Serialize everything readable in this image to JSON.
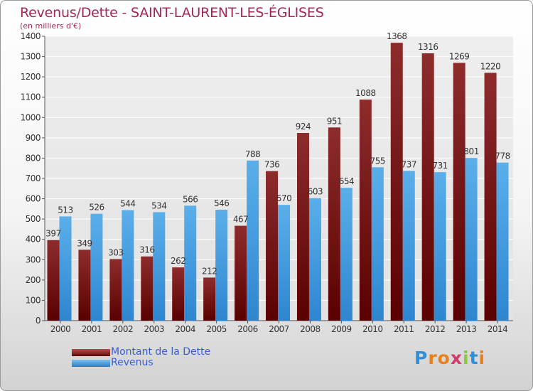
{
  "header": {
    "title": "Revenus/Dette - SAINT-LAURENT-LES-ÉGLISES",
    "subtitle": "(en milliers d'€)"
  },
  "chart_data": {
    "type": "bar",
    "categories": [
      "2000",
      "2001",
      "2002",
      "2003",
      "2004",
      "2005",
      "2006",
      "2007",
      "2008",
      "2009",
      "2010",
      "2011",
      "2012",
      "2013",
      "2014"
    ],
    "series": [
      {
        "name": "Montant de la Dette",
        "color": "#8b1a1a",
        "values": [
          397,
          349,
          303,
          316,
          262,
          212,
          467,
          736,
          924,
          951,
          1088,
          1368,
          1316,
          1269,
          1220
        ]
      },
      {
        "name": "Revenus",
        "color": "#4aa3e3",
        "values": [
          513,
          526,
          544,
          534,
          566,
          546,
          788,
          570,
          603,
          654,
          755,
          737,
          731,
          801,
          778
        ]
      }
    ],
    "ylim": [
      0,
      1400
    ],
    "yticks": [
      0,
      100,
      200,
      300,
      400,
      500,
      600,
      700,
      800,
      900,
      1000,
      1100,
      1200,
      1300,
      1400
    ],
    "grid": true,
    "legend_position": "bottom-left"
  },
  "legend": {
    "items": [
      {
        "label": "Montant de la Dette",
        "color": "#8b1a1a"
      },
      {
        "label": "Revenus",
        "color": "#4aa3e3"
      }
    ]
  },
  "logo": {
    "letters": [
      "P",
      "r",
      "o",
      "x",
      "i",
      "t",
      "i"
    ],
    "colors": [
      "#2f8fd8",
      "#e8811c",
      "#e8811c",
      "#d23a6b",
      "#8cc63f",
      "#2f8fd8",
      "#e8811c"
    ]
  }
}
